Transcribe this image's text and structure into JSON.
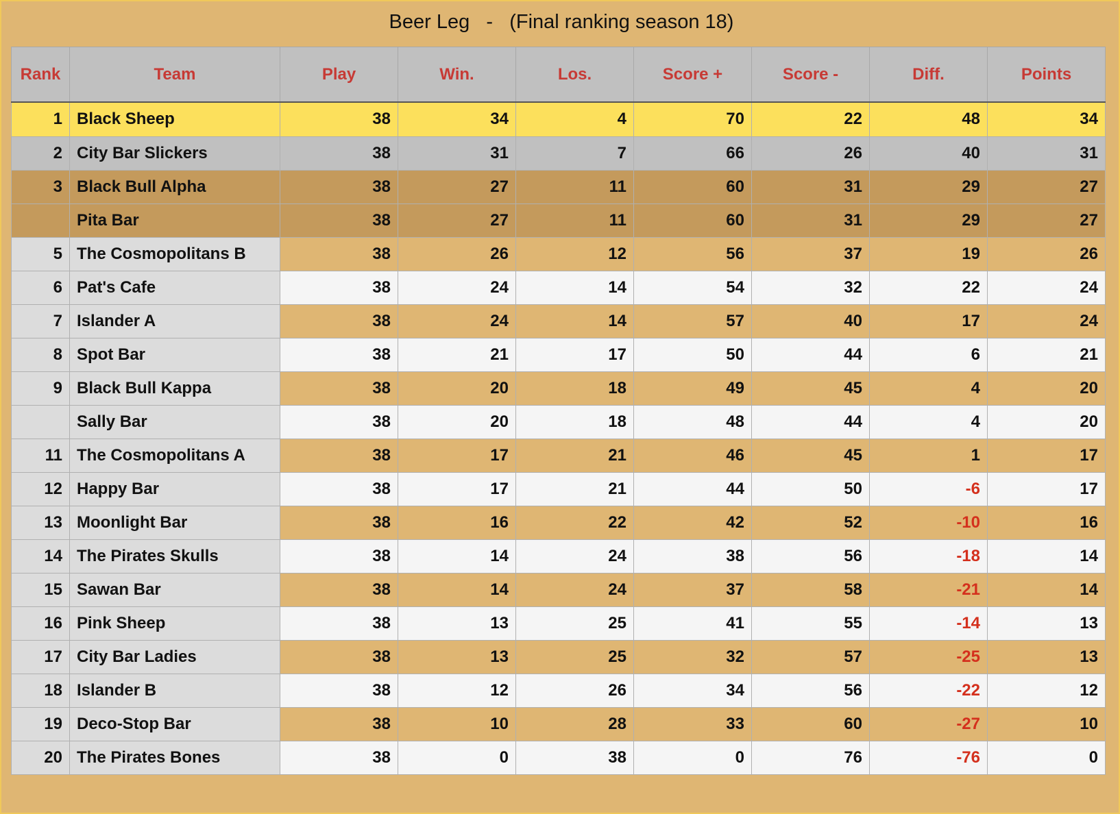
{
  "title": "Beer Leg   -   (Final ranking season 18)",
  "colors": {
    "background": "#dfb673",
    "header_bg": "#c0c0c0",
    "header_text": "#c73a35",
    "gold": "#fce05c",
    "silver": "#c0c0c0",
    "bronze": "#c49a5c",
    "negative": "#d4301d"
  },
  "columns": [
    "Rank",
    "Team",
    "Play",
    "Win.",
    "Los.",
    "Score +",
    "Score -",
    "Diff.",
    "Points"
  ],
  "rows": [
    {
      "rank": "1",
      "team": "Black Sheep",
      "play": "38",
      "win": "34",
      "los": "4",
      "score_plus": "70",
      "score_minus": "22",
      "diff": "48",
      "points": "34",
      "highlight": "gold"
    },
    {
      "rank": "2",
      "team": "City Bar Slickers",
      "play": "38",
      "win": "31",
      "los": "7",
      "score_plus": "66",
      "score_minus": "26",
      "diff": "40",
      "points": "31",
      "highlight": "silver"
    },
    {
      "rank": "3",
      "team": "Black Bull Alpha",
      "play": "38",
      "win": "27",
      "los": "11",
      "score_plus": "60",
      "score_minus": "31",
      "diff": "29",
      "points": "27",
      "highlight": "bronze"
    },
    {
      "rank": "",
      "team": "Pita Bar",
      "play": "38",
      "win": "27",
      "los": "11",
      "score_plus": "60",
      "score_minus": "31",
      "diff": "29",
      "points": "27",
      "highlight": "bronze"
    },
    {
      "rank": "5",
      "team": "The Cosmopolitans B",
      "play": "38",
      "win": "26",
      "los": "12",
      "score_plus": "56",
      "score_minus": "37",
      "diff": "19",
      "points": "26",
      "highlight": "odd"
    },
    {
      "rank": "6",
      "team": "Pat's Cafe",
      "play": "38",
      "win": "24",
      "los": "14",
      "score_plus": "54",
      "score_minus": "32",
      "diff": "22",
      "points": "24",
      "highlight": "even"
    },
    {
      "rank": "7",
      "team": "Islander A",
      "play": "38",
      "win": "24",
      "los": "14",
      "score_plus": "57",
      "score_minus": "40",
      "diff": "17",
      "points": "24",
      "highlight": "odd"
    },
    {
      "rank": "8",
      "team": "Spot Bar",
      "play": "38",
      "win": "21",
      "los": "17",
      "score_plus": "50",
      "score_minus": "44",
      "diff": "6",
      "points": "21",
      "highlight": "even"
    },
    {
      "rank": "9",
      "team": "Black Bull Kappa",
      "play": "38",
      "win": "20",
      "los": "18",
      "score_plus": "49",
      "score_minus": "45",
      "diff": "4",
      "points": "20",
      "highlight": "odd"
    },
    {
      "rank": "",
      "team": "Sally Bar",
      "play": "38",
      "win": "20",
      "los": "18",
      "score_plus": "48",
      "score_minus": "44",
      "diff": "4",
      "points": "20",
      "highlight": "even"
    },
    {
      "rank": "11",
      "team": "The Cosmopolitans A",
      "play": "38",
      "win": "17",
      "los": "21",
      "score_plus": "46",
      "score_minus": "45",
      "diff": "1",
      "points": "17",
      "highlight": "odd"
    },
    {
      "rank": "12",
      "team": "Happy Bar",
      "play": "38",
      "win": "17",
      "los": "21",
      "score_plus": "44",
      "score_minus": "50",
      "diff": "-6",
      "points": "17",
      "highlight": "even"
    },
    {
      "rank": "13",
      "team": "Moonlight Bar",
      "play": "38",
      "win": "16",
      "los": "22",
      "score_plus": "42",
      "score_minus": "52",
      "diff": "-10",
      "points": "16",
      "highlight": "odd"
    },
    {
      "rank": "14",
      "team": "The Pirates Skulls",
      "play": "38",
      "win": "14",
      "los": "24",
      "score_plus": "38",
      "score_minus": "56",
      "diff": "-18",
      "points": "14",
      "highlight": "even"
    },
    {
      "rank": "15",
      "team": "Sawan Bar",
      "play": "38",
      "win": "14",
      "los": "24",
      "score_plus": "37",
      "score_minus": "58",
      "diff": "-21",
      "points": "14",
      "highlight": "odd"
    },
    {
      "rank": "16",
      "team": "Pink Sheep",
      "play": "38",
      "win": "13",
      "los": "25",
      "score_plus": "41",
      "score_minus": "55",
      "diff": "-14",
      "points": "13",
      "highlight": "even"
    },
    {
      "rank": "17",
      "team": "City Bar Ladies",
      "play": "38",
      "win": "13",
      "los": "25",
      "score_plus": "32",
      "score_minus": "57",
      "diff": "-25",
      "points": "13",
      "highlight": "odd"
    },
    {
      "rank": "18",
      "team": "Islander B",
      "play": "38",
      "win": "12",
      "los": "26",
      "score_plus": "34",
      "score_minus": "56",
      "diff": "-22",
      "points": "12",
      "highlight": "even"
    },
    {
      "rank": "19",
      "team": "Deco-Stop Bar",
      "play": "38",
      "win": "10",
      "los": "28",
      "score_plus": "33",
      "score_minus": "60",
      "diff": "-27",
      "points": "10",
      "highlight": "odd"
    },
    {
      "rank": "20",
      "team": "The Pirates Bones",
      "play": "38",
      "win": "0",
      "los": "38",
      "score_plus": "0",
      "score_minus": "76",
      "diff": "-76",
      "points": "0",
      "highlight": "even"
    }
  ]
}
